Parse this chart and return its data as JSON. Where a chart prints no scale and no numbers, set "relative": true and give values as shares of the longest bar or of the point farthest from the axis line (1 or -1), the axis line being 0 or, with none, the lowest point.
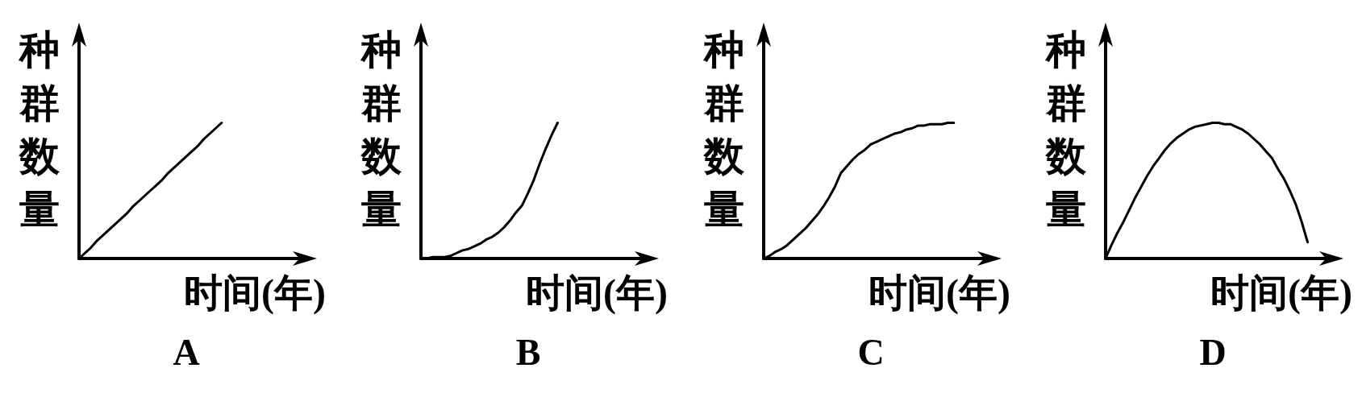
{
  "chart_data": [
    {
      "type": "line",
      "title": "A",
      "xlabel": "时间(年)",
      "ylabel": "种群数量",
      "relative": true,
      "line_style": "solid",
      "color": "#000000",
      "categories": [
        null,
        null,
        null,
        null,
        null,
        null,
        null,
        null,
        null,
        null,
        null,
        null,
        null,
        null,
        null,
        null,
        null,
        null,
        null,
        null,
        null,
        null,
        null,
        null,
        null,
        null,
        null,
        null,
        null,
        null,
        null,
        null,
        null,
        null,
        null,
        null,
        null,
        null,
        null
      ],
      "values": [
        0,
        0.04,
        0.08,
        0.13,
        0.17,
        0.21,
        0.25,
        0.29,
        0.33,
        0.38,
        0.42,
        0.46,
        0.5,
        0.54,
        0.58,
        0.63,
        0.67,
        0.71,
        0.75,
        0.79,
        0.83,
        0.88,
        0.92,
        0.96,
        1,
        null,
        null,
        null,
        null,
        null,
        null,
        null,
        null,
        null,
        null,
        null,
        null,
        null,
        null
      ]
    },
    {
      "type": "line",
      "title": "B",
      "xlabel": "时间(年)",
      "ylabel": "种群数量",
      "relative": true,
      "line_style": "solid",
      "color": "#000000",
      "categories": [
        null,
        null,
        null,
        null,
        null,
        null,
        null,
        null,
        null,
        null,
        null,
        null,
        null,
        null,
        null,
        null,
        null,
        null,
        null,
        null,
        null,
        null,
        null,
        null,
        null,
        null,
        null,
        null,
        null,
        null,
        null,
        null,
        null,
        null,
        null,
        null,
        null,
        null,
        null
      ],
      "values": [
        0,
        0,
        0.01,
        0.01,
        0.01,
        0.02,
        0.04,
        0.06,
        0.07,
        0.09,
        0.11,
        0.14,
        0.16,
        0.19,
        0.23,
        0.28,
        0.34,
        0.39,
        0.48,
        0.58,
        0.7,
        0.81,
        0.91,
        1,
        null,
        null,
        null,
        null,
        null,
        null,
        null,
        null,
        null,
        null,
        null,
        null,
        null,
        null,
        null
      ]
    },
    {
      "type": "line",
      "title": "C",
      "xlabel": "时间(年)",
      "ylabel": "种群数量",
      "relative": true,
      "line_style": "solid",
      "color": "#000000",
      "categories": [
        null,
        null,
        null,
        null,
        null,
        null,
        null,
        null,
        null,
        null,
        null,
        null,
        null,
        null,
        null,
        null,
        null,
        null,
        null,
        null,
        null,
        null,
        null,
        null,
        null,
        null,
        null,
        null,
        null,
        null,
        null,
        null,
        null,
        null,
        null,
        null,
        null,
        null,
        null
      ],
      "values": [
        0,
        0.02,
        0.05,
        0.07,
        0.1,
        0.14,
        0.18,
        0.22,
        0.27,
        0.32,
        0.38,
        0.45,
        0.53,
        0.63,
        0.68,
        0.73,
        0.77,
        0.8,
        0.84,
        0.86,
        0.88,
        0.9,
        0.92,
        0.93,
        0.95,
        0.96,
        0.98,
        0.98,
        0.99,
        0.99,
        0.99,
        1,
        1,
        null,
        null,
        null,
        null,
        null,
        null
      ]
    },
    {
      "type": "line",
      "title": "D",
      "xlabel": "时间(年)",
      "ylabel": "种群数量",
      "relative": true,
      "line_style": "solid",
      "color": "#000000",
      "categories": [
        null,
        null,
        null,
        null,
        null,
        null,
        null,
        null,
        null,
        null,
        null,
        null,
        null,
        null,
        null,
        null,
        null,
        null,
        null,
        null,
        null,
        null,
        null,
        null,
        null,
        null,
        null,
        null,
        null,
        null,
        null,
        null,
        null,
        null,
        null,
        null,
        null,
        null,
        null
      ],
      "values": [
        0,
        0.1,
        0.19,
        0.27,
        0.36,
        0.45,
        0.53,
        0.61,
        0.68,
        0.74,
        0.8,
        0.85,
        0.89,
        0.92,
        0.95,
        0.97,
        0.98,
        0.99,
        1,
        1,
        0.99,
        0.99,
        0.97,
        0.95,
        0.92,
        0.88,
        0.84,
        0.79,
        0.74,
        0.66,
        0.59,
        0.5,
        0.4,
        0.27,
        0.12,
        null,
        null,
        null,
        null
      ]
    }
  ]
}
